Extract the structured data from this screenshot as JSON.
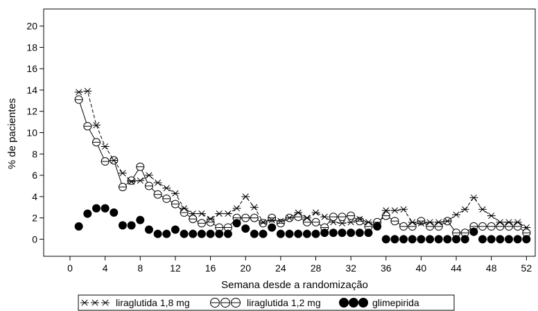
{
  "chart_data": {
    "type": "line",
    "title": "",
    "xlabel": "Semana desde a randomização",
    "ylabel": "% de pacientes",
    "xlim": [
      -3,
      53
    ],
    "ylim": [
      -1.6,
      21.6
    ],
    "xticks": [
      0,
      4,
      8,
      12,
      16,
      20,
      24,
      28,
      32,
      36,
      40,
      44,
      48,
      52
    ],
    "xtick_labels": [
      "0",
      "4",
      "8",
      "12",
      "16",
      "20",
      "24",
      "28",
      "32",
      "36",
      "40",
      "44",
      "48",
      "52"
    ],
    "yticks": [
      0,
      2,
      4,
      6,
      8,
      10,
      12,
      14,
      16,
      18,
      20
    ],
    "ytick_labels": [
      "0",
      "2",
      "4",
      "6",
      "8",
      "10",
      "12",
      "14",
      "16",
      "18",
      "20"
    ],
    "legend_position": "bottom",
    "grid": false,
    "series": [
      {
        "name": "liraglutida 1,8 mg",
        "marker": "asterisk",
        "line": "dashed",
        "color": "#000000",
        "x": [
          1,
          2,
          3,
          4,
          5,
          6,
          7,
          8,
          9,
          10,
          11,
          12,
          13,
          14,
          15,
          16,
          17,
          18,
          19,
          20,
          21,
          22,
          23,
          24,
          25,
          26,
          27,
          28,
          29,
          30,
          31,
          32,
          33,
          34,
          35,
          36,
          37,
          38,
          39,
          40,
          41,
          42,
          43,
          44,
          45,
          46,
          47,
          48,
          49,
          50,
          51,
          52
        ],
        "y": [
          13.8,
          13.9,
          10.7,
          8.7,
          7.4,
          6.2,
          5.4,
          5.5,
          6.0,
          5.3,
          4.8,
          4.3,
          2.9,
          2.4,
          2.4,
          1.9,
          2.4,
          2.4,
          2.9,
          4.0,
          3.0,
          1.6,
          1.8,
          1.7,
          2.0,
          2.5,
          2.0,
          2.5,
          2.1,
          1.6,
          1.5,
          1.6,
          1.9,
          1.6,
          1.2,
          2.7,
          2.7,
          2.8,
          1.6,
          1.5,
          1.6,
          1.6,
          1.7,
          2.3,
          2.8,
          3.9,
          2.8,
          2.2,
          1.6,
          1.6,
          1.6,
          1.1
        ]
      },
      {
        "name": "liraglutida 1,2 mg",
        "marker": "open-circle",
        "line": "solid",
        "color": "#000000",
        "x": [
          1,
          2,
          3,
          4,
          5,
          6,
          7,
          8,
          9,
          10,
          11,
          12,
          13,
          14,
          15,
          16,
          17,
          18,
          19,
          20,
          21,
          22,
          23,
          24,
          25,
          26,
          27,
          28,
          29,
          30,
          31,
          32,
          33,
          34,
          35,
          36,
          37,
          38,
          39,
          40,
          41,
          42,
          43,
          44,
          45,
          46,
          47,
          48,
          49,
          50,
          51,
          52
        ],
        "y": [
          13.1,
          10.6,
          9.1,
          7.3,
          7.4,
          4.9,
          5.5,
          6.8,
          5.0,
          4.2,
          3.8,
          3.3,
          2.5,
          1.9,
          1.5,
          1.6,
          1.1,
          1.1,
          2.0,
          2.0,
          2.0,
          1.5,
          2.0,
          1.5,
          2.0,
          2.1,
          1.6,
          1.6,
          1.1,
          2.1,
          2.1,
          2.2,
          1.7,
          1.2,
          1.6,
          2.2,
          1.7,
          1.2,
          1.2,
          1.7,
          1.2,
          1.2,
          1.7,
          0.6,
          0.6,
          1.2,
          1.2,
          1.2,
          1.2,
          1.2,
          1.2,
          0.6
        ]
      },
      {
        "name": "glimepirida",
        "marker": "filled-circle",
        "line": "none",
        "color": "#000000",
        "x": [
          1,
          2,
          3,
          4,
          5,
          6,
          7,
          8,
          9,
          10,
          11,
          12,
          13,
          14,
          15,
          16,
          17,
          18,
          19,
          20,
          21,
          22,
          23,
          24,
          25,
          26,
          27,
          28,
          29,
          30,
          31,
          32,
          33,
          34,
          35,
          36,
          37,
          38,
          39,
          40,
          41,
          42,
          43,
          44,
          45,
          46,
          47,
          48,
          49,
          50,
          51,
          52
        ],
        "y": [
          1.2,
          2.4,
          2.9,
          2.9,
          2.5,
          1.3,
          1.3,
          1.8,
          0.9,
          0.5,
          0.5,
          0.9,
          0.5,
          0.5,
          0.5,
          0.5,
          0.5,
          0.5,
          1.5,
          1.0,
          0.5,
          0.5,
          1.1,
          0.5,
          0.5,
          0.5,
          0.5,
          0.5,
          0.6,
          0.6,
          0.6,
          0.6,
          0.6,
          0.6,
          1.2,
          0,
          0,
          0,
          0,
          0,
          0,
          0,
          0,
          0,
          0,
          0.7,
          0,
          0,
          0,
          0,
          0,
          0
        ]
      }
    ]
  }
}
